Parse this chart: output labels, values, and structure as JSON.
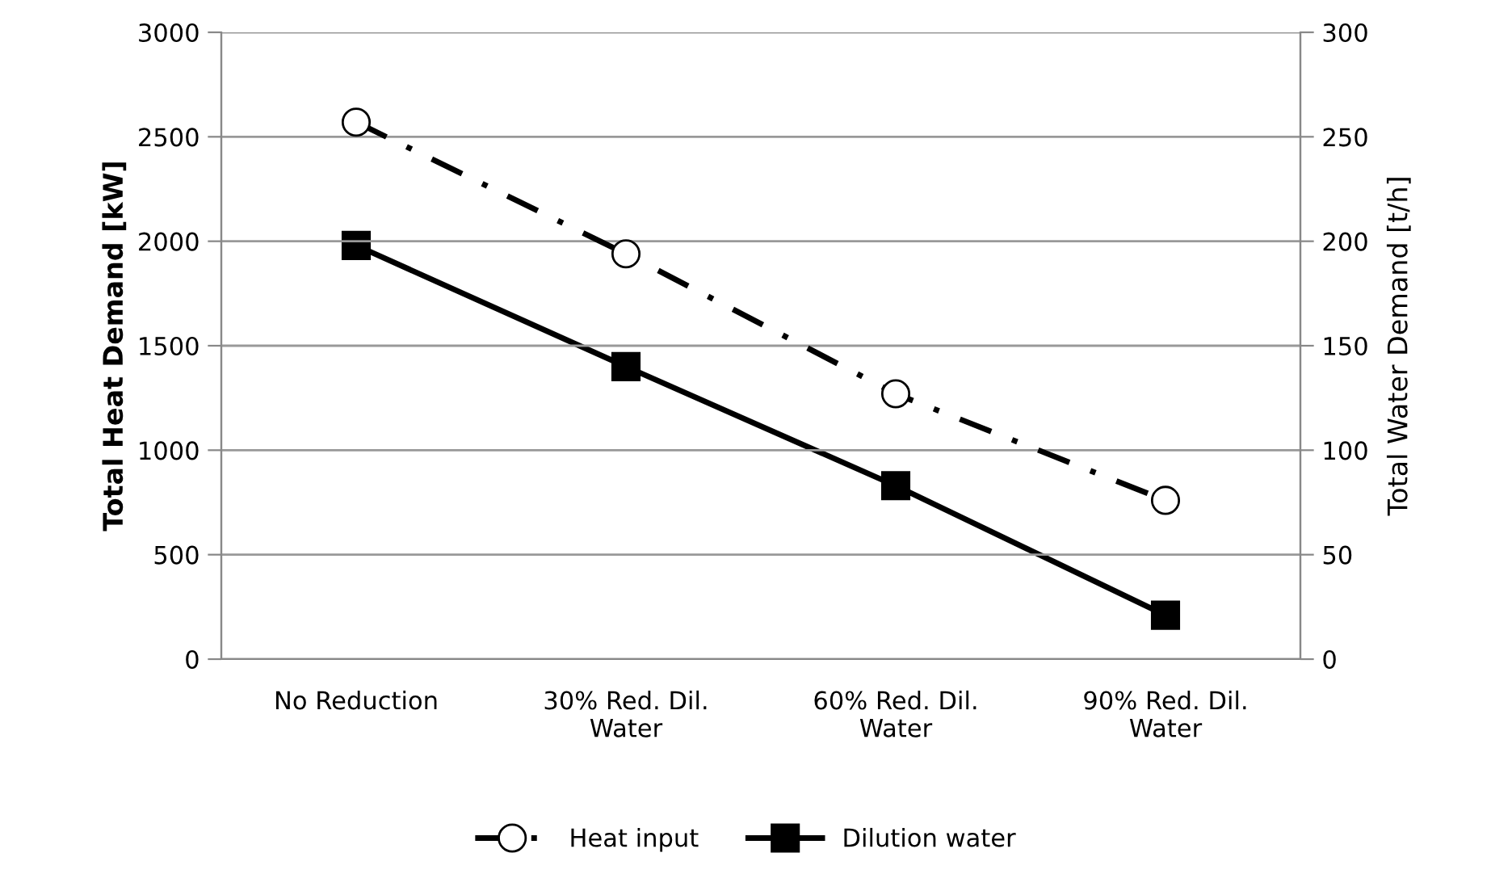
{
  "chart_data": {
    "type": "line",
    "categories": [
      "No Reduction",
      "30% Red. Dil.\nWater",
      "60% Red. Dil.\nWater",
      "90% Red. Dil.\nWater"
    ],
    "ylabel": "Total Heat Demand [kW]",
    "y2label": "Total Water Demand [t/h]",
    "ylim": [
      0,
      3000
    ],
    "yticks": [
      0,
      500,
      1000,
      1500,
      2000,
      2500,
      3000
    ],
    "y2lim": [
      0,
      300
    ],
    "y2ticks": [
      0,
      50,
      100,
      150,
      200,
      250,
      300
    ],
    "grid": "y",
    "legend": "bottom",
    "series": [
      {
        "name": "Heat input",
        "color": "#000000",
        "values": [
          2570,
          1940,
          1270,
          760
        ],
        "marker": "circle",
        "line_style": "dashdot"
      },
      {
        "name": "Dilution water",
        "color": "#000000",
        "values": [
          198,
          140,
          83,
          21
        ],
        "marker": "square",
        "line_style": "solid",
        "axis": "y2"
      }
    ]
  }
}
